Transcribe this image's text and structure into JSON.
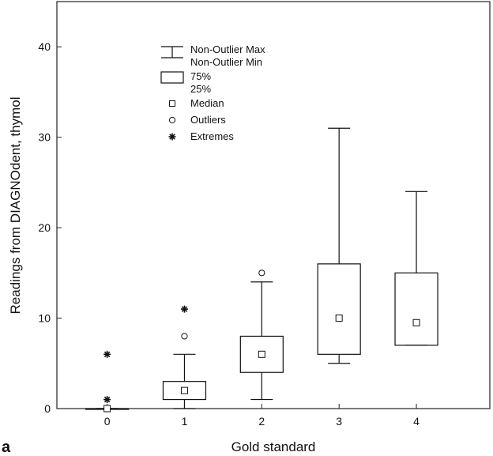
{
  "chart_data": {
    "type": "box",
    "panel_label": "a",
    "xlabel": "Gold standard",
    "ylabel": "Readings from DIAGNOdent, thymol",
    "categories": [
      "0",
      "1",
      "2",
      "3",
      "4"
    ],
    "xlim": [
      -0.65,
      4.95
    ],
    "ylim": [
      0,
      45
    ],
    "yticks": [
      0,
      10,
      20,
      30,
      40
    ],
    "grid": false,
    "legend_position": "top-left",
    "boxes": [
      {
        "category": "0",
        "whisker_min": 0,
        "q1": 0,
        "median": 0,
        "q3": 0,
        "whisker_max": 0,
        "outliers": [],
        "extremes": [
          1,
          6
        ]
      },
      {
        "category": "1",
        "whisker_min": 0,
        "q1": 1,
        "median": 2,
        "q3": 3,
        "whisker_max": 6,
        "outliers": [
          8
        ],
        "extremes": [
          11
        ]
      },
      {
        "category": "2",
        "whisker_min": 1,
        "q1": 4,
        "median": 6,
        "q3": 8,
        "whisker_max": 14,
        "outliers": [
          15
        ],
        "extremes": []
      },
      {
        "category": "3",
        "whisker_min": 5,
        "q1": 6,
        "median": 10,
        "q3": 16,
        "whisker_max": 31,
        "outliers": [],
        "extremes": []
      },
      {
        "category": "4",
        "whisker_min": 7,
        "q1": 7,
        "median": 9.5,
        "q3": 15,
        "whisker_max": 24,
        "outliers": [],
        "extremes": []
      }
    ],
    "legend": [
      {
        "symbol": "whisker",
        "lines": [
          "Non-Outlier Max",
          "Non-Outlier Min"
        ]
      },
      {
        "symbol": "box",
        "lines": [
          "75%",
          "25%"
        ]
      },
      {
        "symbol": "square",
        "lines": [
          "Median"
        ]
      },
      {
        "symbol": "circle",
        "lines": [
          "Outliers"
        ]
      },
      {
        "symbol": "asterisk",
        "lines": [
          "Extremes"
        ]
      }
    ]
  }
}
